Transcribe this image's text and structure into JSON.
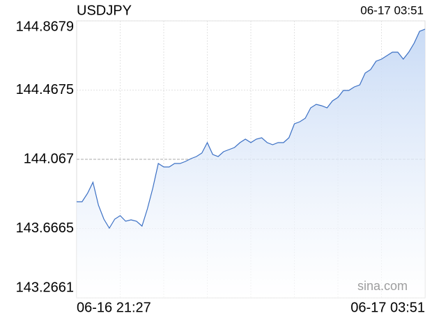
{
  "chart_data": {
    "type": "line",
    "title": "USDJPY",
    "timestamp": "06-17 03:51",
    "watermark": "sina.com",
    "x": [
      0,
      6,
      12,
      18,
      24,
      30,
      36,
      42,
      48,
      54,
      60,
      66,
      72,
      78,
      84,
      90,
      96,
      102,
      108,
      114,
      120,
      126,
      132,
      138,
      144,
      150,
      156,
      162,
      168,
      174,
      180,
      186,
      192,
      198,
      204,
      210,
      216,
      222,
      228,
      234,
      240,
      246,
      252,
      258,
      264,
      270,
      276,
      282,
      288,
      294,
      300,
      306,
      312,
      318,
      324,
      330,
      336,
      342,
      348,
      354,
      360,
      366,
      372,
      378,
      384
    ],
    "values": [
      143.8215,
      143.8215,
      143.8698,
      143.9342,
      143.8014,
      143.7209,
      143.6686,
      143.7209,
      143.741,
      143.7088,
      143.7169,
      143.7088,
      143.6806,
      143.7813,
      143.902,
      144.0429,
      144.0227,
      144.0227,
      144.0429,
      144.0429,
      144.0549,
      144.071,
      144.0831,
      144.1032,
      144.1636,
      144.0952,
      144.0831,
      144.1113,
      144.1233,
      144.1354,
      144.1636,
      144.1837,
      144.1636,
      144.1837,
      144.1918,
      144.1636,
      144.1515,
      144.1636,
      144.1636,
      144.1918,
      144.2723,
      144.2843,
      144.3045,
      144.3648,
      144.3849,
      144.3769,
      144.3648,
      144.4051,
      144.4252,
      144.4654,
      144.4654,
      144.4856,
      144.4976,
      144.5661,
      144.5862,
      144.6345,
      144.6465,
      144.6667,
      144.6868,
      144.6868,
      144.6465,
      144.6868,
      144.7391,
      144.8075,
      144.82
    ],
    "color": "#3a6fc4",
    "up_color": "#009900",
    "down_color": "#dd0000",
    "grid": true,
    "xlim": [
      0,
      384
    ],
    "xticks": [
      {
        "value": 0,
        "label": "06-16 21:27"
      },
      {
        "value": 384,
        "label": "06-17 03:51"
      }
    ],
    "ylim": [
      143.2661,
      144.8679
    ],
    "yticks": [
      143.2661,
      143.6665,
      144.067,
      144.4675,
      144.8679
    ]
  }
}
